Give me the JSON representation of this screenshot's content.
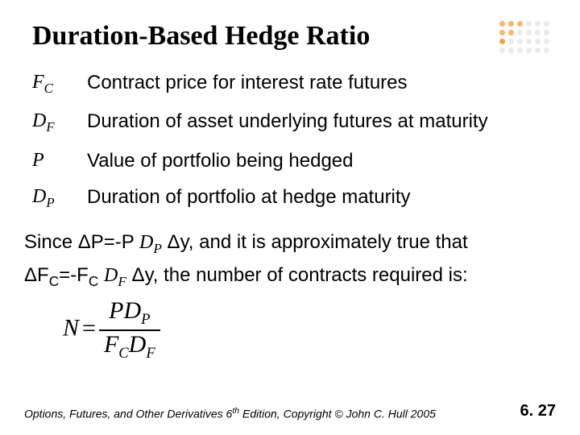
{
  "title": "Duration-Based Hedge Ratio",
  "decoration": {
    "dot_colors": [
      "#f7b76d",
      "#f7b76d",
      "#f7b76d",
      "#eaeaea",
      "#eaeaea",
      "#eaeaea",
      "#f7b76d",
      "#f7b76d",
      "#eaeaea",
      "#eaeaea",
      "#eaeaea",
      "#eaeaea",
      "#f0a050",
      "#eaeaea",
      "#eaeaea",
      "#eaeaea",
      "#eaeaea",
      "#eaeaea",
      "#eaeaea",
      "#eaeaea",
      "#eaeaea",
      "#eaeaea",
      "#eaeaea",
      "#eaeaea"
    ]
  },
  "definitions": [
    {
      "symbol_main": "F",
      "symbol_sub": "C",
      "description": "Contract price for interest rate futures"
    },
    {
      "symbol_main": "D",
      "symbol_sub": "F",
      "description": "Duration of asset underlying futures at maturity"
    },
    {
      "symbol_main": "P",
      "symbol_sub": "",
      "description": "Value of portfolio being hedged"
    },
    {
      "symbol_main": "D",
      "symbol_sub": "P",
      "description": "Duration of portfolio at hedge maturity"
    }
  ],
  "sentence": {
    "part1": "Since ΔP=-P ",
    "sym1_main": "D",
    "sym1_sub": "P",
    "part2": " Δy, and it is approximately true that",
    "part3": "ΔF",
    "sub3": "C",
    "part4": "=-F",
    "sub4": "C",
    "part5": " ",
    "sym2_main": "D",
    "sym2_sub": "F",
    "part6": " Δy, the number of contracts required is:"
  },
  "formula": {
    "lhs": "N",
    "eq": "=",
    "num_a": "P",
    "num_b": "D",
    "num_b_sub": "P",
    "den_a": "F",
    "den_a_sub": "C",
    "den_b": "D",
    "den_b_sub": "F"
  },
  "footer": {
    "copy_a": "Options, Futures, and Other Derivatives 6",
    "copy_th": "th",
    "copy_b": " Edition, Copyright © John C. Hull 2005",
    "page": "6. 27"
  }
}
